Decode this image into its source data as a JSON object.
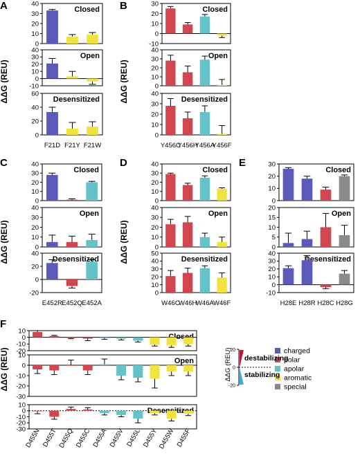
{
  "colors": {
    "charged": "#5a5ab8",
    "polar": "#d24650",
    "apolar": "#64c2cb",
    "aromatic": "#f2e23c",
    "special": "#8a8a8a",
    "destabilizing": "#c8102e",
    "stabilizing": "#3fa9e0"
  },
  "legend": {
    "items": [
      {
        "key": "charged",
        "label": "charged"
      },
      {
        "key": "polar",
        "label": "polar"
      },
      {
        "key": "apolar",
        "label": "apolar"
      },
      {
        "key": "aromatic",
        "label": "aromatic"
      },
      {
        "key": "special",
        "label": "special"
      }
    ],
    "scale_ylabel": "ΔΔG (REU)",
    "scale_ticks": [
      "20",
      "0",
      "-20"
    ],
    "destabilizing_label": "destabilizing",
    "stabilizing_label": "stabilizing"
  },
  "chart_data": [
    {
      "panel": "A",
      "type": "bar",
      "ylabel": "ΔΔG (REU)",
      "categories": [
        "F21D",
        "F21Y",
        "F21W"
      ],
      "classes": [
        "charged",
        "aromatic",
        "aromatic"
      ],
      "subplots": [
        {
          "title": "Closed",
          "ylim": [
            0,
            40
          ],
          "ticks": [
            0,
            10,
            20,
            30,
            40
          ],
          "values": [
            33,
            7,
            9
          ],
          "errors": [
            1,
            2,
            2
          ]
        },
        {
          "title": "Open",
          "ylim": [
            -10,
            40
          ],
          "ticks": [
            -10,
            0,
            10,
            20,
            30,
            40
          ],
          "values": [
            21,
            3,
            -4
          ],
          "errors": [
            7,
            7,
            4
          ]
        },
        {
          "title": "Desensitized",
          "ylim": [
            0,
            60
          ],
          "ticks": [
            0,
            20,
            40,
            60
          ],
          "values": [
            33,
            9,
            12
          ],
          "errors": [
            7,
            9,
            7
          ]
        }
      ]
    },
    {
      "panel": "B",
      "type": "bar",
      "ylabel": "ΔΔG (REU)",
      "categories": [
        "Y456C",
        "Y456H",
        "Y456A",
        "Y456F"
      ],
      "classes": [
        "polar",
        "polar",
        "apolar",
        "aromatic"
      ],
      "subplots": [
        {
          "title": "Closed",
          "ylim": [
            -10,
            30
          ],
          "ticks": [
            -10,
            0,
            10,
            20,
            30
          ],
          "values": [
            25,
            9,
            17,
            -2
          ],
          "errors": [
            2,
            2,
            2,
            2
          ]
        },
        {
          "title": "Open",
          "ylim": [
            0,
            40
          ],
          "ticks": [
            0,
            10,
            20,
            30,
            40
          ],
          "values": [
            28,
            15,
            29,
            1
          ],
          "errors": [
            6,
            7,
            4,
            6
          ]
        },
        {
          "title": "Desensitized",
          "ylim": [
            0,
            40
          ],
          "ticks": [
            0,
            10,
            20,
            30,
            40
          ],
          "values": [
            28,
            16,
            22,
            1
          ],
          "errors": [
            7,
            6,
            6,
            8
          ]
        }
      ]
    },
    {
      "panel": "C",
      "type": "bar",
      "ylabel": "ΔΔG (REU)",
      "categories": [
        "E452R",
        "E452Q",
        "E452A"
      ],
      "classes": [
        "charged",
        "polar",
        "apolar"
      ],
      "subplots": [
        {
          "title": "Closed",
          "ylim": [
            0,
            40
          ],
          "ticks": [
            0,
            10,
            20,
            30,
            40
          ],
          "values": [
            28,
            1,
            20
          ],
          "errors": [
            2,
            1,
            1
          ]
        },
        {
          "title": "Open",
          "ylim": [
            0,
            40
          ],
          "ticks": [
            0,
            10,
            20,
            30,
            40
          ],
          "values": [
            5,
            5,
            7
          ],
          "errors": [
            7,
            6,
            6
          ]
        },
        {
          "title": "Desensitized",
          "ylim": [
            -20,
            40
          ],
          "ticks": [
            -20,
            0,
            20,
            40
          ],
          "values": [
            25,
            -10,
            27
          ],
          "errors": [
            5,
            3,
            3
          ]
        }
      ]
    },
    {
      "panel": "D",
      "type": "bar",
      "ylabel": "ΔΔG (REU)",
      "categories": [
        "W46C",
        "W46H",
        "W46A",
        "W46F"
      ],
      "classes": [
        "polar",
        "polar",
        "apolar",
        "aromatic"
      ],
      "subplots": [
        {
          "title": "Closed",
          "ylim": [
            0,
            40
          ],
          "ticks": [
            0,
            10,
            20,
            30,
            40
          ],
          "values": [
            29,
            17,
            25,
            13
          ],
          "errors": [
            1,
            2,
            2,
            1
          ]
        },
        {
          "title": "Open",
          "ylim": [
            0,
            40
          ],
          "ticks": [
            0,
            10,
            20,
            30,
            40
          ],
          "values": [
            23,
            25,
            10,
            5
          ],
          "errors": [
            5,
            6,
            4,
            5
          ]
        },
        {
          "title": "Desensitized",
          "ylim": [
            0,
            50
          ],
          "ticks": [
            0,
            10,
            20,
            30,
            40,
            50
          ],
          "values": [
            21,
            25,
            31,
            19
          ],
          "errors": [
            7,
            6,
            3,
            6
          ]
        }
      ]
    },
    {
      "panel": "E",
      "type": "bar",
      "ylabel": "",
      "categories": [
        "H28E",
        "H28R",
        "H28C",
        "H28G"
      ],
      "classes": [
        "charged",
        "charged",
        "polar",
        "special"
      ],
      "subplots": [
        {
          "title": "Closed",
          "ylim": [
            0,
            30
          ],
          "ticks": [
            0,
            10,
            20,
            30
          ],
          "values": [
            26,
            18,
            9,
            20
          ],
          "errors": [
            1,
            2,
            2,
            1
          ]
        },
        {
          "title": "Open",
          "ylim": [
            0,
            20
          ],
          "ticks": [
            0,
            5,
            10,
            15,
            20
          ],
          "values": [
            2,
            4,
            10,
            6
          ],
          "errors": [
            5,
            4,
            7,
            5
          ]
        },
        {
          "title": "Desensitized",
          "ylim": [
            -10,
            40
          ],
          "ticks": [
            -10,
            0,
            10,
            20,
            30,
            40
          ],
          "values": [
            21,
            31,
            -3,
            14
          ],
          "errors": [
            3,
            6,
            2,
            4
          ]
        }
      ]
    },
    {
      "panel": "F",
      "type": "bar",
      "ylabel": "ΔΔG (REU)",
      "categories": [
        "D455N",
        "D455T",
        "D455Q",
        "D455C",
        "D455A",
        "D455V",
        "D455L",
        "D455Y",
        "D455W",
        "D455F"
      ],
      "classes": [
        "polar",
        "polar",
        "polar",
        "polar",
        "apolar",
        "apolar",
        "apolar",
        "aromatic",
        "aromatic",
        "aromatic"
      ],
      "subplots": [
        {
          "title": "Closed",
          "ylim": [
            -20,
            10
          ],
          "ticks": [
            -20,
            -10,
            0,
            10
          ],
          "values": [
            8,
            2,
            -1,
            -2,
            -1,
            -2,
            -5,
            -11,
            -12,
            -10
          ],
          "errors": [
            2,
            1,
            1,
            3,
            2,
            2,
            2,
            2,
            3,
            3
          ]
        },
        {
          "title": "Open",
          "ylim": [
            -30,
            10
          ],
          "ticks": [
            -30,
            -20,
            -10,
            0,
            10
          ],
          "values": [
            -4,
            -5,
            0,
            -5,
            1,
            -10,
            -12,
            -13,
            -6,
            -6
          ],
          "errors": [
            4,
            4,
            5,
            4,
            5,
            4,
            4,
            9,
            4,
            4
          ]
        },
        {
          "title": "Desensitized",
          "ylim": [
            -30,
            10
          ],
          "ticks": [
            -30,
            -20,
            -10,
            0,
            10
          ],
          "values": [
            -1,
            -10,
            3,
            2,
            -4,
            -7,
            -13,
            -4,
            -13,
            -5
          ],
          "errors": [
            4,
            4,
            3,
            3,
            3,
            3,
            7,
            3,
            4,
            3
          ]
        }
      ]
    }
  ]
}
